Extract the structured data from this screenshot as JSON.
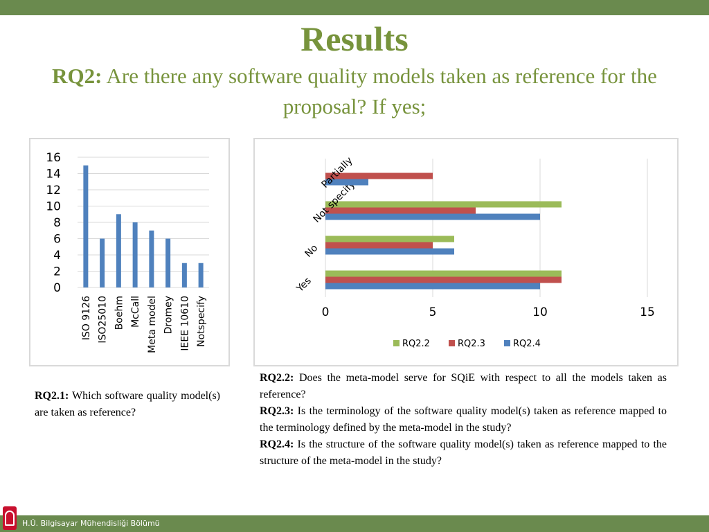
{
  "slide": {
    "title": "Results",
    "subtitle_label": "RQ2:",
    "subtitle_text": " Are there any software quality models taken as reference for the proposal? If yes;",
    "footer": "H.Ü. Bilgisayar Mühendisliği Bölümü"
  },
  "colors": {
    "accent": "#6a8a4e",
    "title": "#77933c",
    "bar_blue": "#4f81bd",
    "bar_red": "#c0504d",
    "bar_green": "#9bbb59"
  },
  "texts": {
    "rq21_label": "RQ2.1:",
    "rq21_text": " Which software quality model(s) are taken as reference?",
    "rq22_label": "RQ2.2:",
    "rq22_text": " Does the meta-model serve for SQiE with respect to all the models taken as reference?",
    "rq23_label": "RQ2.3:",
    "rq23_text": " Is the terminology of the software quality model(s) taken as reference mapped to the terminology defined by the meta-model in the study?",
    "rq24_label": "RQ2.4:",
    "rq24_text": " Is the structure of the software quality model(s) taken as reference mapped to the structure of the meta-model in the study?"
  },
  "chart_data": [
    {
      "type": "bar",
      "categories": [
        "ISO 9126",
        "ISO25010",
        "Boehm",
        "McCall",
        "Meta model",
        "Dromey",
        "IEEE 10610",
        "Notspecify"
      ],
      "values": [
        15,
        6,
        9,
        8,
        7,
        6,
        3,
        3
      ],
      "ylim": [
        0,
        16
      ],
      "yticks": [
        0,
        2,
        4,
        6,
        8,
        10,
        12,
        14,
        16
      ],
      "grid": true
    },
    {
      "type": "bar",
      "orientation": "horizontal",
      "categories": [
        "Yes",
        "No",
        "Not specify",
        "Partially"
      ],
      "series": [
        {
          "name": "RQ2.2",
          "values": [
            11,
            6,
            11,
            0
          ]
        },
        {
          "name": "RQ2.3",
          "values": [
            11,
            5,
            7,
            5
          ]
        },
        {
          "name": "RQ2.4",
          "values": [
            10,
            6,
            10,
            2
          ]
        }
      ],
      "xlim": [
        0,
        15
      ],
      "xticks": [
        0,
        5,
        10,
        15
      ],
      "grid": true,
      "legend": "bottom"
    }
  ]
}
